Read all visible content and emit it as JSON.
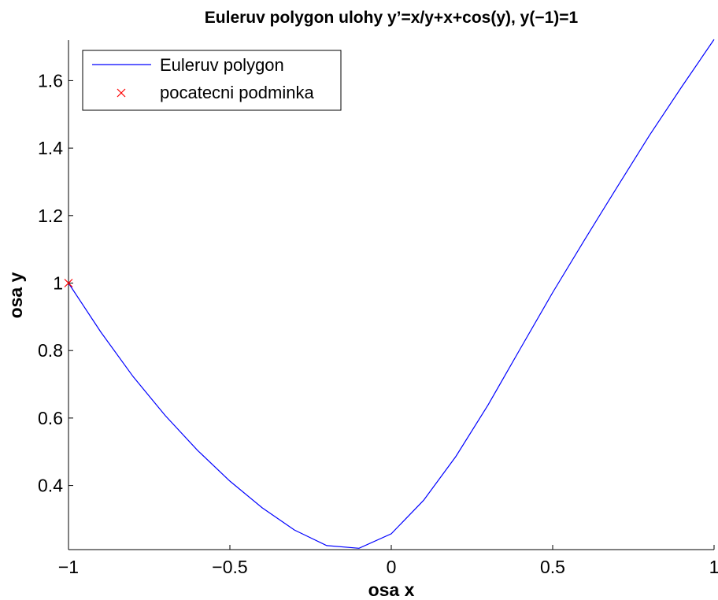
{
  "chart_data": {
    "type": "line",
    "title": "Euleruv polygon ulohy y’=x/y+x+cos(y), y(−1)=1",
    "xlabel": "osa x",
    "ylabel": "osa y",
    "xlim": [
      -1,
      1
    ],
    "ylim": [
      0.21,
      1.72
    ],
    "grid": false,
    "legend_position": "top-left",
    "x_ticks": [
      {
        "value": -1,
        "label": "−1"
      },
      {
        "value": -0.5,
        "label": "−0.5"
      },
      {
        "value": 0,
        "label": "0"
      },
      {
        "value": 0.5,
        "label": "0.5"
      },
      {
        "value": 1,
        "label": "1"
      }
    ],
    "y_ticks": [
      {
        "value": 0.4,
        "label": "0.4"
      },
      {
        "value": 0.6,
        "label": "0.6"
      },
      {
        "value": 0.8,
        "label": "0.8"
      },
      {
        "value": 1,
        "label": "1"
      },
      {
        "value": 1.2,
        "label": "1.2"
      },
      {
        "value": 1.4,
        "label": "1.4"
      },
      {
        "value": 1.6,
        "label": "1.6"
      }
    ],
    "series": [
      {
        "name": "Euleruv polygon",
        "color": "#0000ff",
        "marker": "none",
        "x": [
          -1,
          -0.9,
          -0.8,
          -0.7,
          -0.6,
          -0.5,
          -0.4,
          -0.3,
          -0.2,
          -0.1,
          0,
          0.1,
          0.2,
          0.3,
          0.4,
          0.5,
          0.6,
          0.7,
          0.8,
          0.9,
          1
        ],
        "y": [
          1,
          0.855,
          0.723,
          0.607,
          0.504,
          0.413,
          0.334,
          0.268,
          0.222,
          0.214,
          0.257,
          0.356,
          0.486,
          0.639,
          0.806,
          0.972,
          1.13,
          1.285,
          1.438,
          1.582,
          1.722
        ]
      },
      {
        "name": "pocatecni podminka",
        "color": "#ff0000",
        "marker": "x",
        "x": [
          -1
        ],
        "y": [
          1
        ]
      }
    ]
  }
}
